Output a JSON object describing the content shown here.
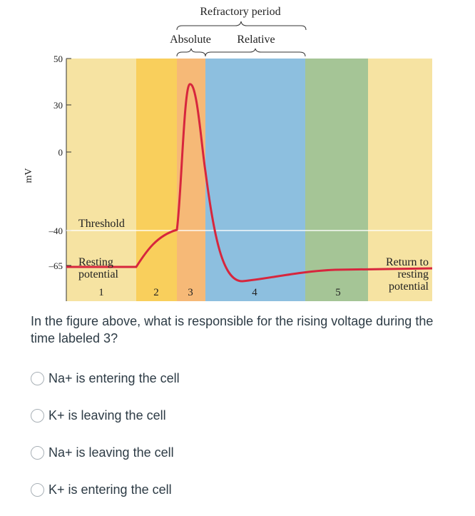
{
  "figure": {
    "refractory_label": "Refractory period",
    "absolute_label": "Absolute",
    "relative_label": "Relative",
    "ylabel": "mV",
    "threshold_label": "Threshold",
    "resting_label_line1": "Resting",
    "resting_label_line2": "potential",
    "return_label_line1": "Return to",
    "return_label_line2": "resting",
    "return_label_line3": "potential",
    "colors": {
      "phase1": "#f6e3a2",
      "phase2": "#f9cf5c",
      "phase3": "#f6b977",
      "phase4": "#8dbfdf",
      "phase5": "#a5c596",
      "phase6": "#f6e3a2",
      "trace": "#d7263d"
    }
  },
  "chart_data": {
    "type": "line",
    "title": "",
    "xlabel": "",
    "ylabel": "mV",
    "y_ticks": [
      50,
      30,
      0,
      -40,
      -65
    ],
    "phases": [
      "1",
      "2",
      "3",
      "4",
      "5"
    ],
    "annotations": [
      "Threshold",
      "Resting potential",
      "Return to resting potential",
      "Refractory period",
      "Absolute",
      "Relative"
    ],
    "series": [
      {
        "values_description_points": [
          {
            "phase": "1",
            "mV": -65
          },
          {
            "phase": "2",
            "mV": -40
          },
          {
            "phase": "3",
            "mV": 40
          },
          {
            "phase": "4",
            "mV": -70
          },
          {
            "phase": "5",
            "mV": -65
          }
        ]
      }
    ]
  },
  "question": {
    "text": "In the figure above, what is responsible for the rising voltage during the time labeled 3?"
  },
  "options": [
    {
      "label": "Na+ is entering the cell"
    },
    {
      "label": "K+ is leaving the cell"
    },
    {
      "label": "Na+ is leaving the cell"
    },
    {
      "label": "K+ is entering the cell"
    }
  ]
}
